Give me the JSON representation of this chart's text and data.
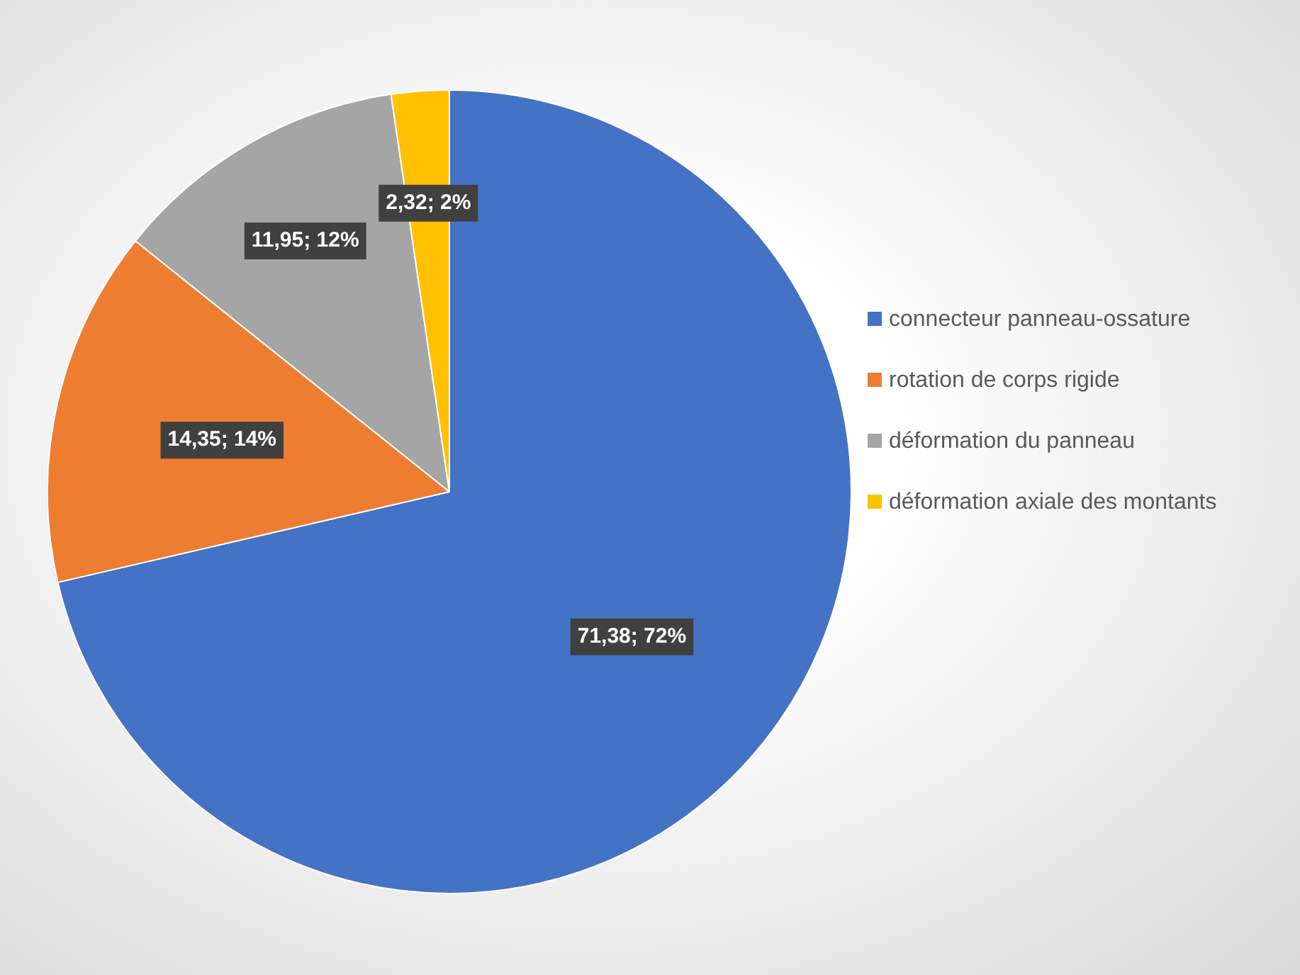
{
  "chart_data": {
    "type": "pie",
    "categories": [
      "connecteur panneau-ossature",
      "rotation de corps rigide",
      "déformation du panneau",
      "déformation axiale des montants"
    ],
    "values": [
      71.38,
      14.35,
      11.95,
      2.32
    ],
    "colors": [
      "#4472c4",
      "#ed7d31",
      "#a5a5a5",
      "#ffc000"
    ],
    "value_labels": [
      "71,38; 72%",
      "14,35; 14%",
      "11,95; 12%",
      "2,32; 2%"
    ],
    "legend": "right"
  }
}
